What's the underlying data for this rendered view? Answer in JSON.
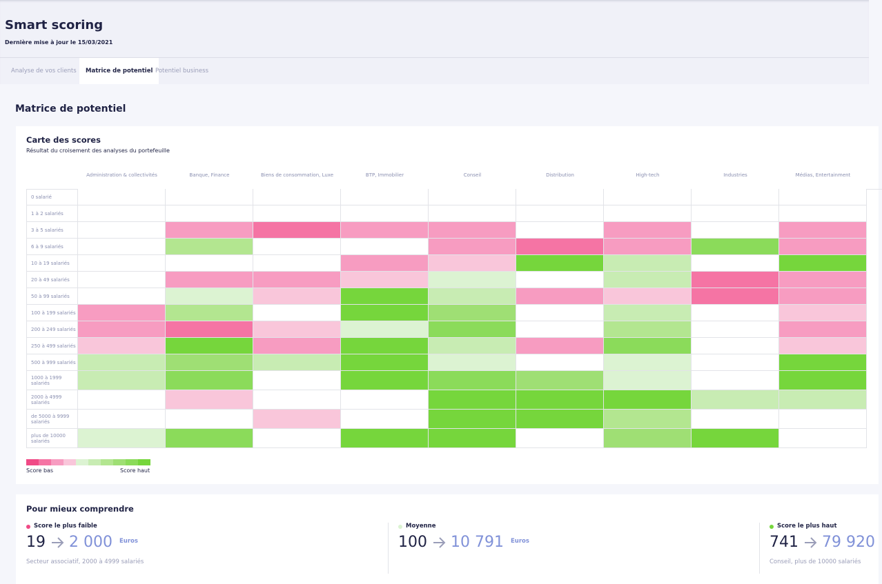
{
  "header": {
    "title": "Smart scoring",
    "updated": "Dernière mise à jour le 15/03/2021"
  },
  "tabs": [
    "Analyse de vos clients",
    "Matrice de potentiel",
    "Potentiel business"
  ],
  "active_tab": 1,
  "section_title": "Matrice de potentiel",
  "heatmap": {
    "title": "Carte des scores",
    "subtitle": "Résultat du croisement des analyses du portefeuille",
    "columns": [
      "Administration & collectivités",
      "Banque, Finance",
      "Biens de consommation, Luxe",
      "BTP, Immobilier",
      "Conseil",
      "Distribution",
      "High-tech",
      "Industries",
      "Médias, Entertainment"
    ],
    "rows": [
      "0 salarié",
      "1 à 2 salariés",
      "3 à 5 salariés",
      "6 à 9 salariés",
      "10 à 19 salariés",
      "20 à 49 salariés",
      "50 à 99 salariés",
      "100 à 199 salariés",
      "200 à 249 salariés",
      "250 à 499 salariés",
      "500 à 999 salariés",
      "1000 à 1999 salariés",
      "2000 à 4999 salariés",
      "de 5000 à 9999 salariés",
      "plus de 10000 salariés"
    ],
    "colors": [
      "#f04a86",
      "#f574a4",
      "#f79cc1",
      "#f9c6da",
      "#dcf3d2",
      "#c8ecb3",
      "#b3e690",
      "#9fdf74",
      "#8bdb5a",
      "#76d63c"
    ],
    "cells": [
      [
        null,
        null,
        null,
        null,
        null,
        null,
        null,
        null,
        null
      ],
      [
        null,
        null,
        null,
        null,
        null,
        null,
        null,
        null,
        null
      ],
      [
        null,
        2,
        1,
        2,
        2,
        null,
        2,
        null,
        2
      ],
      [
        null,
        6,
        null,
        null,
        2,
        1,
        2,
        8,
        2
      ],
      [
        null,
        null,
        null,
        2,
        3,
        9,
        5,
        null,
        9
      ],
      [
        null,
        2,
        2,
        3,
        4,
        null,
        5,
        1,
        2
      ],
      [
        null,
        4,
        3,
        9,
        5,
        2,
        3,
        1,
        2
      ],
      [
        2,
        6,
        null,
        9,
        7,
        null,
        5,
        null,
        3
      ],
      [
        2,
        1,
        3,
        4,
        8,
        null,
        6,
        null,
        2
      ],
      [
        3,
        9,
        2,
        9,
        5,
        2,
        8,
        null,
        3
      ],
      [
        5,
        7,
        5,
        9,
        4,
        null,
        4,
        null,
        9
      ],
      [
        5,
        8,
        null,
        9,
        8,
        7,
        4,
        null,
        9
      ],
      [
        null,
        3,
        null,
        null,
        9,
        9,
        9,
        5,
        5
      ],
      [
        null,
        null,
        3,
        null,
        9,
        9,
        6,
        null,
        null
      ],
      [
        4,
        8,
        null,
        9,
        9,
        null,
        7,
        9,
        null
      ]
    ],
    "legend": {
      "low": "Score bas",
      "high": "Score haut"
    }
  },
  "summary": {
    "title": "Pour mieux comprendre",
    "items": [
      {
        "label": "Score le plus faible",
        "color": "#f04a86",
        "from": "19",
        "to": "2 000",
        "unit": "Euros",
        "caption": "Secteur associatif, 2000 à 4999 salariés"
      },
      {
        "label": "Moyenne",
        "color": "#dcf3d2",
        "from": "100",
        "to": "10 791",
        "unit": "Euros"
      },
      {
        "label": "Score le plus haut",
        "color": "#76d63c",
        "from": "741",
        "to": "79 920",
        "caption": "Conseil, plus de 10000 salariés"
      }
    ]
  }
}
